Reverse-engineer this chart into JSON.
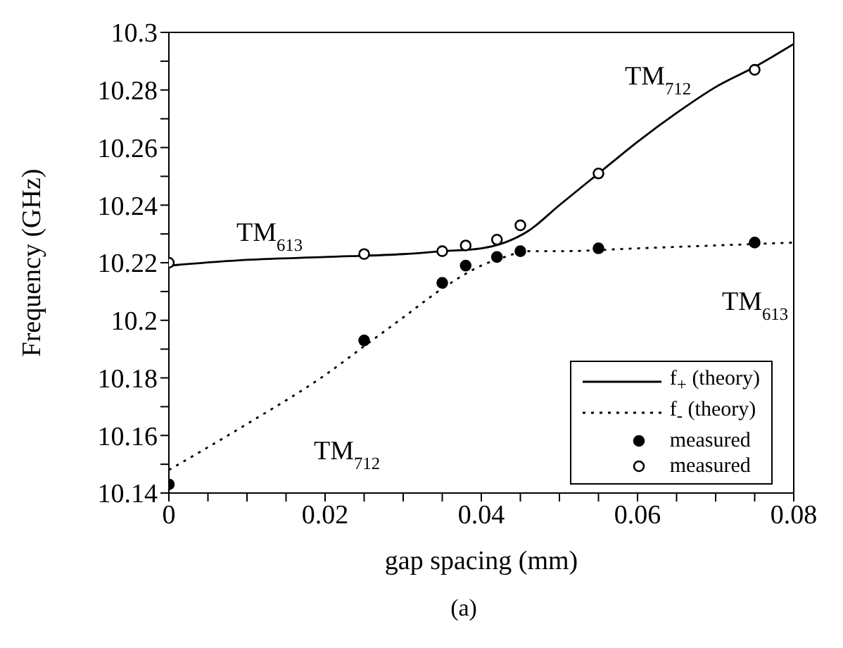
{
  "chart_data": {
    "type": "line",
    "xlabel": "gap spacing (mm)",
    "ylabel": "Frequency (GHz)",
    "xlim": [
      0,
      0.08
    ],
    "ylim": [
      10.14,
      10.3
    ],
    "xticks": [
      0,
      {
        "value": 0.005,
        "label": null
      },
      {
        "value": 0.01,
        "label": null
      },
      {
        "value": 0.015,
        "label": null
      },
      0.02,
      {
        "value": 0.025,
        "label": null
      },
      {
        "value": 0.03,
        "label": null
      },
      {
        "value": 0.035,
        "label": null
      },
      0.04,
      {
        "value": 0.045,
        "label": null
      },
      {
        "value": 0.05,
        "label": null
      },
      {
        "value": 0.055,
        "label": null
      },
      0.06,
      {
        "value": 0.065,
        "label": null
      },
      {
        "value": 0.07,
        "label": null
      },
      {
        "value": 0.075,
        "label": null
      },
      0.08
    ],
    "yticks": [
      10.14,
      {
        "value": 10.15,
        "label": null
      },
      10.16,
      {
        "value": 10.17,
        "label": null
      },
      10.18,
      {
        "value": 10.19,
        "label": null
      },
      10.2,
      {
        "value": 10.21,
        "label": null
      },
      10.22,
      {
        "value": 10.23,
        "label": null
      },
      10.24,
      {
        "value": 10.25,
        "label": null
      },
      10.26,
      {
        "value": 10.27,
        "label": null
      },
      10.28,
      {
        "value": 10.29,
        "label": null
      },
      10.3
    ],
    "grid": false,
    "legend": "bottom right",
    "series": [
      {
        "name": "f$_{+}$ (theory)",
        "type": "line",
        "color": "#000000",
        "line_style": "solid",
        "marker": "none",
        "x": [
          0,
          0.01,
          0.02,
          0.03,
          0.035,
          0.04,
          0.043,
          0.046,
          0.05,
          0.055,
          0.06,
          0.065,
          0.07,
          0.075,
          0.08
        ],
        "values": [
          10.219,
          10.221,
          10.222,
          10.223,
          10.224,
          10.225,
          10.227,
          10.231,
          10.24,
          10.251,
          10.262,
          10.272,
          10.281,
          10.288,
          10.296
        ]
      },
      {
        "name": "f$_{-}$ (theory)",
        "type": "line",
        "color": "#000000",
        "line_style": "dotted",
        "marker": "none",
        "x": [
          0,
          0.01,
          0.02,
          0.025,
          0.03,
          0.035,
          0.04,
          0.043,
          0.046,
          0.05,
          0.06,
          0.07,
          0.08
        ],
        "values": [
          10.148,
          10.164,
          10.181,
          10.191,
          10.201,
          10.211,
          10.219,
          10.222,
          10.224,
          10.224,
          10.225,
          10.226,
          10.227
        ]
      },
      {
        "name": "measured",
        "type": "scatter",
        "color": "#000000",
        "marker": "circle",
        "x": [
          0,
          0.025,
          0.035,
          0.038,
          0.042,
          0.045,
          0.055,
          0.075
        ],
        "values": [
          10.143,
          10.193,
          10.213,
          10.219,
          10.222,
          10.224,
          10.225,
          10.227
        ]
      },
      {
        "name": "measured",
        "type": "scatter",
        "color": "#000000",
        "marker": "circle",
        "x": [
          0,
          0.025,
          0.035,
          0.038,
          0.042,
          0.045,
          0.055,
          0.075
        ],
        "values": [
          10.22,
          10.223,
          10.224,
          10.226,
          10.228,
          10.233,
          10.251,
          10.287
        ]
      }
    ],
    "annotations": [
      "TM$_{613}$",
      "TM$_{712}$",
      "TM$_{613}$",
      "TM$_{712}$",
      "(a)"
    ]
  }
}
